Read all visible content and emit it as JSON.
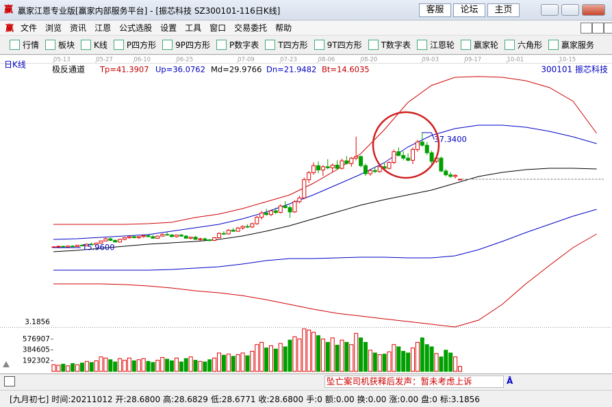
{
  "window": {
    "icon": "赢",
    "title": "赢家江恩专业版[赢家内部服务平台] - [振芯科技  SZ300101-116日K线]",
    "buttons": [
      "客服",
      "论坛",
      "主页"
    ],
    "menu": [
      "文件",
      "浏览",
      "资讯",
      "江恩",
      "公式选股",
      "设置",
      "工具",
      "窗口",
      "交易委托",
      "帮助"
    ],
    "toolbar": [
      "行情",
      "板块",
      "K线",
      "P四方形",
      "9P四方形",
      "P数字表",
      "T四方形",
      "9T四方形",
      "T数字表",
      "江恩轮",
      "赢家轮",
      "六角形",
      "赢家服务"
    ],
    "ticker": "坠亡案司机获释后发声：暂未考虑上诉",
    "status": [
      "[九月初七]",
      "时间:20211012",
      "开:28.6800",
      "高:28.6829",
      "低:28.6771",
      "收:28.6800",
      "手:0",
      "额:0.00",
      "换:0.00",
      "涨:0.00",
      "盘:0",
      "标:3.1856"
    ]
  },
  "chart_data": {
    "type": "candlestick",
    "title": "日K线",
    "stock": "300101 振芯科技",
    "indicator": {
      "name": "极反通道",
      "items": [
        {
          "text": "Tp=41.3907",
          "color": "#c00000"
        },
        {
          "text": "Up=36.0762",
          "color": "#0000c0"
        },
        {
          "text": "Md=29.9766",
          "color": "#000000"
        },
        {
          "text": "Dn=21.9482",
          "color": "#0000c0"
        },
        {
          "text": "Bt=14.6035",
          "color": "#c00000"
        }
      ]
    },
    "date_ticks": [
      {
        "value": 0,
        "label": "05-13"
      },
      {
        "value": 9,
        "label": "05-27"
      },
      {
        "value": 17,
        "label": "06-10"
      },
      {
        "value": 26,
        "label": "06-25"
      },
      {
        "value": 39,
        "label": "07-09"
      },
      {
        "value": 48,
        "label": "07-23"
      },
      {
        "value": 56,
        "label": "08-06"
      },
      {
        "value": 65,
        "label": "08-20"
      },
      {
        "value": 78,
        "label": "09-03"
      },
      {
        "value": 87,
        "label": "09-17"
      },
      {
        "value": 96,
        "label": "10-01"
      },
      {
        "value": 107,
        "label": "10-15"
      }
    ],
    "xlim": [
      0,
      116.5
    ],
    "ylim": [
      1.2,
      48.27
    ],
    "up_color": "#e00000",
    "down_color": "#00a000",
    "ohlc": [
      [
        16.0,
        16.2,
        15.96,
        16.1
      ],
      [
        16.1,
        16.3,
        16.0,
        16.2
      ],
      [
        16.2,
        16.3,
        16.0,
        16.05
      ],
      [
        16.05,
        16.3,
        16.0,
        16.25
      ],
      [
        16.25,
        16.4,
        16.1,
        16.15
      ],
      [
        16.15,
        16.5,
        16.1,
        16.4
      ],
      [
        16.4,
        16.6,
        16.2,
        16.3
      ],
      [
        16.3,
        16.7,
        16.2,
        16.6
      ],
      [
        16.6,
        16.9,
        16.4,
        16.5
      ],
      [
        16.5,
        16.9,
        16.4,
        16.8
      ],
      [
        16.8,
        17.3,
        16.7,
        17.2
      ],
      [
        17.2,
        17.8,
        17.1,
        17.6
      ],
      [
        17.6,
        17.8,
        17.2,
        17.3
      ],
      [
        17.3,
        17.5,
        16.9,
        17.0
      ],
      [
        17.0,
        17.6,
        16.9,
        17.5
      ],
      [
        17.5,
        17.9,
        17.3,
        17.8
      ],
      [
        17.8,
        18.2,
        17.6,
        18.0
      ],
      [
        18.0,
        18.3,
        17.7,
        17.8
      ],
      [
        17.8,
        18.1,
        17.6,
        18.0
      ],
      [
        18.0,
        18.4,
        17.8,
        18.2
      ],
      [
        18.2,
        18.5,
        17.9,
        18.0
      ],
      [
        18.0,
        18.3,
        17.6,
        17.7
      ],
      [
        17.7,
        18.2,
        17.6,
        18.1
      ],
      [
        18.1,
        18.6,
        18.0,
        18.4
      ],
      [
        18.4,
        18.9,
        18.2,
        18.3
      ],
      [
        18.3,
        18.5,
        17.9,
        18.0
      ],
      [
        18.0,
        18.4,
        17.8,
        18.3
      ],
      [
        18.3,
        18.5,
        18.0,
        18.1
      ],
      [
        18.1,
        18.3,
        17.6,
        17.7
      ],
      [
        17.7,
        18.0,
        17.5,
        17.9
      ],
      [
        17.9,
        18.1,
        17.4,
        17.5
      ],
      [
        17.5,
        17.8,
        17.2,
        17.6
      ],
      [
        17.6,
        17.8,
        17.3,
        17.4
      ],
      [
        17.4,
        17.6,
        17.1,
        17.3
      ],
      [
        17.3,
        17.9,
        17.2,
        17.8
      ],
      [
        17.8,
        18.8,
        17.7,
        18.6
      ],
      [
        18.6,
        19.0,
        18.3,
        18.5
      ],
      [
        18.5,
        19.4,
        18.4,
        19.2
      ],
      [
        19.2,
        19.6,
        18.9,
        19.0
      ],
      [
        19.0,
        19.8,
        18.9,
        19.6
      ],
      [
        19.6,
        20.1,
        19.3,
        19.9
      ],
      [
        19.9,
        20.3,
        19.6,
        19.8
      ],
      [
        19.8,
        20.6,
        19.6,
        20.4
      ],
      [
        20.4,
        21.9,
        20.2,
        21.6
      ],
      [
        21.6,
        22.8,
        21.2,
        22.4
      ],
      [
        22.4,
        23.2,
        21.9,
        22.1
      ],
      [
        22.1,
        23.0,
        21.8,
        22.8
      ],
      [
        22.8,
        23.4,
        22.2,
        22.5
      ],
      [
        22.5,
        24.0,
        22.3,
        23.7
      ],
      [
        23.7,
        24.6,
        23.2,
        23.4
      ],
      [
        23.4,
        23.8,
        21.5,
        22.6
      ],
      [
        22.6,
        24.8,
        22.4,
        24.5
      ],
      [
        24.5,
        25.6,
        24.2,
        25.2
      ],
      [
        25.2,
        29.0,
        25.0,
        28.6
      ],
      [
        28.6,
        30.2,
        28.0,
        29.9
      ],
      [
        29.9,
        31.8,
        29.5,
        31.2
      ],
      [
        31.2,
        32.0,
        29.8,
        30.4
      ],
      [
        30.4,
        31.3,
        29.3,
        31.0
      ],
      [
        31.0,
        32.4,
        30.5,
        30.8
      ],
      [
        30.8,
        31.6,
        30.0,
        31.3
      ],
      [
        31.3,
        32.2,
        30.4,
        30.7
      ],
      [
        30.7,
        32.5,
        30.5,
        32.1
      ],
      [
        32.1,
        33.0,
        31.4,
        31.6
      ],
      [
        31.6,
        32.8,
        31.0,
        32.6
      ],
      [
        32.6,
        36.6,
        32.2,
        32.9
      ],
      [
        32.9,
        33.1,
        30.9,
        31.2
      ],
      [
        31.2,
        31.6,
        29.3,
        29.7
      ],
      [
        29.7,
        30.6,
        29.3,
        30.3
      ],
      [
        30.3,
        31.0,
        29.8,
        30.1
      ],
      [
        30.1,
        31.2,
        29.9,
        31.0
      ],
      [
        31.0,
        31.8,
        30.5,
        30.7
      ],
      [
        30.7,
        32.0,
        30.5,
        31.8
      ],
      [
        31.8,
        34.2,
        31.5,
        33.8
      ],
      [
        33.8,
        34.6,
        32.9,
        33.1
      ],
      [
        33.1,
        33.9,
        32.2,
        32.6
      ],
      [
        32.6,
        33.5,
        32.0,
        32.2
      ],
      [
        32.2,
        34.6,
        31.5,
        34.2
      ],
      [
        34.2,
        36.0,
        33.8,
        35.6
      ],
      [
        35.6,
        37.34,
        34.7,
        35.0
      ],
      [
        35.0,
        35.6,
        33.2,
        33.6
      ],
      [
        33.6,
        34.0,
        31.5,
        32.0
      ],
      [
        32.0,
        32.9,
        31.7,
        32.6
      ],
      [
        32.6,
        32.9,
        30.0,
        30.2
      ],
      [
        30.2,
        30.6,
        29.2,
        29.5
      ],
      [
        29.5,
        30.0,
        28.9,
        29.2
      ],
      [
        29.2,
        29.6,
        28.8,
        29.4
      ],
      [
        28.68,
        28.6829,
        28.6771,
        28.68
      ]
    ],
    "low_label": "15.9600",
    "high_label": "37.3400",
    "volumes": [
      120000,
      110000,
      130000,
      100000,
      140000,
      120000,
      150000,
      180000,
      160000,
      190000,
      260000,
      240000,
      210000,
      170000,
      230000,
      200000,
      240000,
      190000,
      210000,
      230000,
      180000,
      160000,
      200000,
      250000,
      220000,
      190000,
      240000,
      170000,
      230000,
      260000,
      200000,
      180000,
      170000,
      210000,
      240000,
      330000,
      290000,
      310000,
      270000,
      300000,
      330000,
      280000,
      360000,
      480000,
      520000,
      420000,
      460000,
      400000,
      500000,
      440000,
      560000,
      620000,
      580000,
      760000,
      740000,
      700000,
      640000,
      580000,
      520000,
      600000,
      470000,
      560000,
      520000,
      480000,
      680000,
      600000,
      520000,
      380000,
      330000,
      300000,
      310000,
      350000,
      480000,
      440000,
      360000,
      330000,
      420000,
      520000,
      600000,
      480000,
      440000,
      320000,
      260000,
      380000,
      330000,
      260000,
      90000
    ],
    "vol_ylim": [
      0,
      770000
    ],
    "vol_ticks": [
      576907,
      384605,
      192302
    ],
    "sub_label": "3.1856",
    "line_x": [
      0,
      5,
      10,
      15,
      20,
      25,
      30,
      35,
      40,
      45,
      50,
      55,
      60,
      65,
      70,
      75,
      80,
      85,
      90,
      95,
      100,
      105,
      110,
      115
    ],
    "series": [
      {
        "color": "#d00000",
        "values": [
          20.28,
          20.28,
          20.28,
          20.28,
          20.41,
          20.66,
          21.55,
          22.19,
          23.21,
          24.48,
          25.75,
          27.91,
          30.46,
          33.38,
          37.84,
          42.93,
          46.11,
          47.64,
          47.77,
          47.64,
          47.0,
          45.73,
          43.18,
          37.2
        ]
      },
      {
        "color": "#0000c8",
        "values": [
          17.48,
          17.61,
          17.87,
          18.12,
          18.38,
          19.01,
          19.65,
          20.28,
          21.3,
          22.57,
          24.1,
          25.75,
          27.66,
          29.57,
          31.73,
          34.66,
          36.82,
          38.09,
          38.73,
          38.73,
          38.35,
          37.59,
          36.57,
          35.3
        ]
      },
      {
        "color": "#000000",
        "values": [
          15.19,
          15.45,
          15.83,
          16.21,
          16.59,
          16.85,
          17.1,
          17.48,
          18.12,
          19.01,
          20.03,
          21.3,
          22.57,
          23.85,
          24.86,
          25.75,
          26.64,
          27.91,
          29.19,
          29.95,
          30.46,
          30.72,
          30.72,
          30.59
        ]
      },
      {
        "color": "#0000c8",
        "values": [
          11.76,
          11.76,
          11.76,
          11.76,
          11.76,
          11.89,
          12.14,
          12.4,
          12.91,
          13.54,
          13.92,
          13.92,
          14.05,
          14.18,
          14.18,
          14.05,
          14.05,
          14.43,
          15.58,
          17.1,
          18.76,
          20.28,
          21.81,
          23.08
        ]
      },
      {
        "color": "#d00000",
        "values": [
          9.22,
          9.22,
          9.22,
          9.09,
          8.83,
          8.45,
          7.93,
          7.56,
          7.04,
          6.28,
          5.4,
          4.51,
          3.74,
          3.23,
          2.72,
          2.22,
          1.71,
          1.2,
          2.47,
          5.4,
          9.22,
          12.65,
          15.96,
          18.5
        ]
      }
    ]
  }
}
